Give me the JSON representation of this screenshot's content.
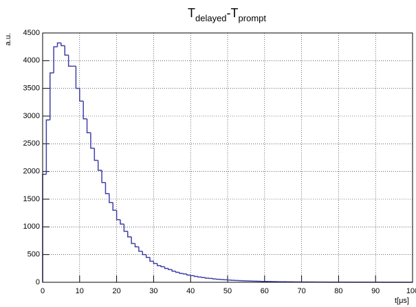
{
  "chart_data": {
    "type": "histogram",
    "title": [
      {
        "text": "T"
      },
      {
        "text": "delayed",
        "subscript": true
      },
      {
        "text": "-T"
      },
      {
        "text": "prompt",
        "subscript": true
      }
    ],
    "x_label": "t[μs]",
    "y_label": "a.u.",
    "color": "#3f3fa8",
    "grid": true,
    "bins": [
      0,
      1,
      2,
      3,
      4,
      5,
      6,
      7,
      8,
      9,
      10,
      11,
      12,
      13,
      14,
      15,
      16,
      17,
      18,
      19,
      20,
      21,
      22,
      23,
      24,
      25,
      26,
      27,
      28,
      29,
      30,
      31,
      32,
      33,
      34,
      35,
      36,
      37,
      38,
      39,
      40,
      41,
      42,
      43,
      44,
      45,
      46,
      47,
      48,
      49,
      50,
      51,
      52,
      53,
      54,
      55,
      56,
      57,
      58,
      59,
      60,
      61,
      62,
      63,
      64,
      65,
      66,
      67,
      68,
      69,
      70,
      71,
      72,
      73,
      74,
      75,
      76,
      77,
      78,
      79,
      80,
      81,
      82,
      83,
      84,
      85,
      86,
      87,
      88,
      89,
      90,
      91,
      92,
      93,
      94,
      95,
      96,
      97,
      98,
      99,
      100
    ],
    "values": [
      1950,
      2930,
      3780,
      4250,
      4320,
      4270,
      4100,
      3900,
      3900,
      3500,
      3270,
      2950,
      2700,
      2420,
      2200,
      2020,
      1800,
      1600,
      1440,
      1300,
      1130,
      1050,
      920,
      820,
      700,
      640,
      560,
      500,
      450,
      380,
      340,
      300,
      280,
      250,
      230,
      200,
      180,
      160,
      150,
      130,
      120,
      105,
      95,
      85,
      75,
      70,
      60,
      55,
      50,
      45,
      40,
      36,
      33,
      30,
      27,
      25,
      22,
      20,
      18,
      16,
      15,
      14,
      12,
      11,
      10,
      9,
      8,
      7,
      6,
      6,
      5,
      5,
      4,
      4,
      3,
      3,
      3,
      2,
      2,
      2,
      2,
      2,
      1,
      1,
      1,
      1,
      1,
      1,
      1,
      1,
      1,
      1,
      0,
      0,
      0,
      0,
      0,
      0,
      0,
      0
    ],
    "xlim": [
      0,
      100
    ],
    "ylim": [
      0,
      4500
    ],
    "xticks": [
      0,
      10,
      20,
      30,
      40,
      50,
      60,
      70,
      80,
      90,
      100
    ],
    "yticks": [
      0,
      500,
      1000,
      1500,
      2000,
      2500,
      3000,
      3500,
      4000,
      4500
    ]
  }
}
